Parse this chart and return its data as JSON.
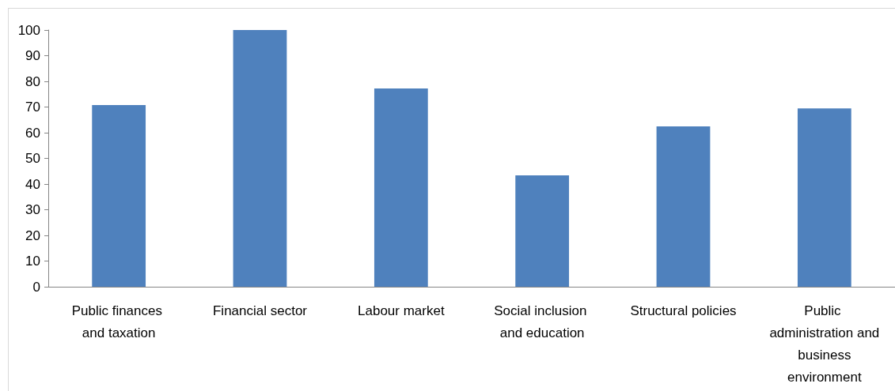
{
  "chart_data": {
    "type": "bar",
    "categories": [
      "Public finances and taxation",
      "Financial sector",
      "Labour market",
      "Social inclusion and education",
      "Structural policies",
      "Public administration and business environment"
    ],
    "values": [
      70.8,
      100,
      77.2,
      43.4,
      62.5,
      69.5
    ],
    "color": "#4f81bd",
    "ylim": [
      0,
      100
    ],
    "yticks": [
      0,
      10,
      20,
      30,
      40,
      50,
      60,
      70,
      80,
      90,
      100
    ],
    "grid": false
  }
}
